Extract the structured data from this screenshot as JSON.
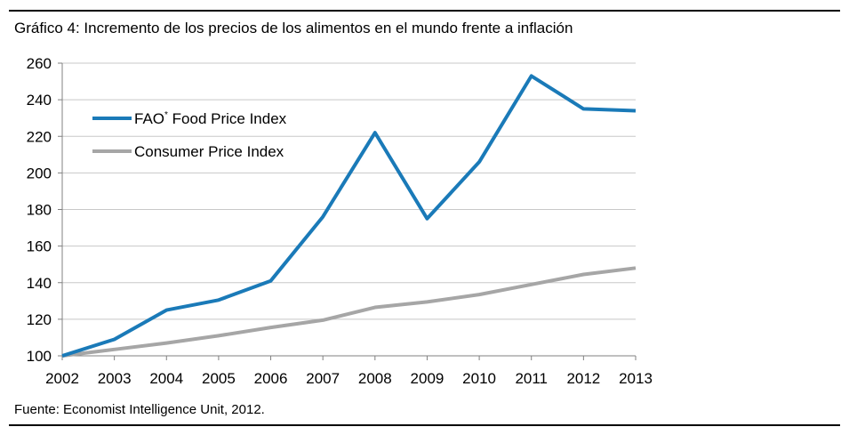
{
  "title": "Gráfico 4: Incremento de los precios de los alimentos en el mundo frente a inflación",
  "source": "Fuente: Economist Intelligence Unit, 2012.",
  "chart_data": {
    "type": "line",
    "title": "Gráfico 4: Incremento de los precios de los alimentos en el mundo frente a inflación",
    "xlabel": "",
    "ylabel": "",
    "categories": [
      "2002",
      "2003",
      "2004",
      "2005",
      "2006",
      "2007",
      "2008",
      "2009",
      "2010",
      "2011",
      "2012",
      "2013"
    ],
    "ylim": [
      100,
      260
    ],
    "yticks": [
      100,
      120,
      140,
      160,
      180,
      200,
      220,
      240,
      260
    ],
    "grid": true,
    "legend_position": "top-left",
    "series": [
      {
        "name": "FAO* Food Price Index",
        "legend_main": "FAO",
        "legend_sup": "*",
        "legend_rest": " Food Price Index",
        "color": "#1a7ab8",
        "values": [
          100,
          109,
          125,
          130.5,
          141,
          176,
          222,
          175,
          206,
          253,
          235,
          234
        ]
      },
      {
        "name": "Consumer Price Index",
        "color": "#a6a6a6",
        "values": [
          100,
          103.5,
          107,
          111,
          115.5,
          119.5,
          126.5,
          129.5,
          133.5,
          139,
          144.5,
          148
        ]
      }
    ]
  }
}
